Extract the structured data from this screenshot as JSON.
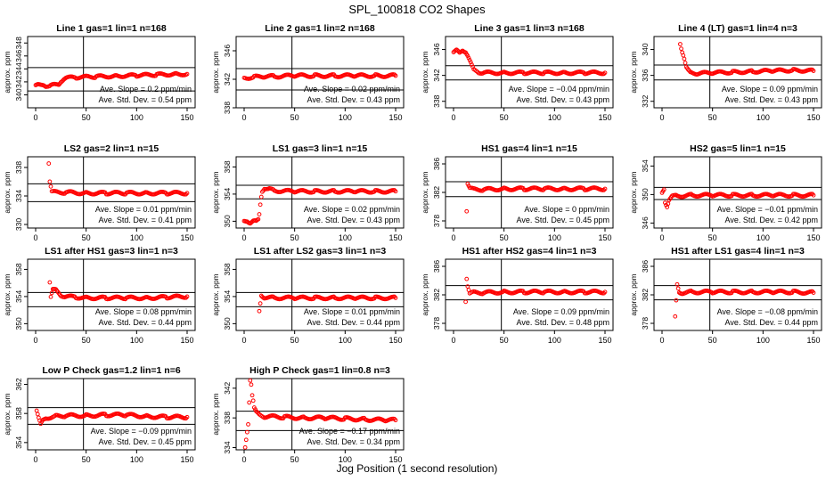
{
  "figure": {
    "title": "SPL_100818  CO2 Shapes",
    "xlabel": "Jog Position (1 second resolution)",
    "ylabel": "approx. ppm",
    "slope_prefix": "Ave. Slope = ",
    "slope_unit": " ppm/min",
    "std_prefix": "Ave. Std. Dev. = ",
    "std_unit": " ppm",
    "point_color": "#ff0000"
  },
  "chart_data": [
    {
      "type": "scatter",
      "title": "Line 1 gas=1 lin=1 n=168",
      "xlim": [
        0,
        150
      ],
      "ylim": [
        338,
        349
      ],
      "yticks": [
        340,
        342,
        344,
        346,
        348
      ],
      "xticks": [
        0,
        50,
        100,
        150
      ],
      "hlines": [
        344.2,
        340.6
      ],
      "vline": 50,
      "slope": "0.2",
      "std": "0.54",
      "points": [
        [
          0,
          341.5
        ],
        [
          2,
          341.5
        ],
        [
          5,
          341.4
        ],
        [
          8,
          341.5
        ],
        [
          10,
          341.4
        ],
        [
          15,
          341.5
        ],
        [
          18,
          341.5
        ],
        [
          20,
          341.5
        ],
        [
          23,
          341.6
        ],
        [
          25,
          342.1
        ],
        [
          28,
          342.5
        ],
        [
          30,
          342.6
        ],
        [
          40,
          342.7
        ],
        [
          60,
          342.8
        ],
        [
          80,
          342.9
        ],
        [
          100,
          343.0
        ],
        [
          120,
          343.1
        ],
        [
          140,
          343.2
        ],
        [
          150,
          343.2
        ]
      ]
    },
    {
      "type": "scatter",
      "title": "Line 2 gas=1 lin=2 n=168",
      "xlim": [
        0,
        150
      ],
      "ylim": [
        338,
        348
      ],
      "yticks": [
        338,
        342,
        346
      ],
      "xticks": [
        0,
        50,
        100,
        150
      ],
      "hlines": [
        343.5,
        340.5
      ],
      "vline": 50,
      "slope": "0.02",
      "std": "0.43",
      "points": [
        [
          0,
          342.2
        ],
        [
          10,
          342.3
        ],
        [
          20,
          342.4
        ],
        [
          30,
          342.4
        ],
        [
          50,
          342.5
        ],
        [
          70,
          342.5
        ],
        [
          90,
          342.5
        ],
        [
          110,
          342.5
        ],
        [
          130,
          342.5
        ],
        [
          150,
          342.5
        ]
      ]
    },
    {
      "type": "scatter",
      "title": "Line 3 gas=1 lin=3 n=168",
      "xlim": [
        0,
        150
      ],
      "ylim": [
        337,
        348
      ],
      "yticks": [
        338,
        342,
        346
      ],
      "xticks": [
        0,
        50,
        100,
        150
      ],
      "hlines": [
        343.5,
        341.3
      ],
      "vline": 50,
      "slope": "−0.04",
      "std": "0.43",
      "points": [
        [
          0,
          345.6
        ],
        [
          3,
          345.8
        ],
        [
          6,
          345.4
        ],
        [
          9,
          345.9
        ],
        [
          12,
          345.7
        ],
        [
          14,
          345.1
        ],
        [
          16,
          344.3
        ],
        [
          18,
          343.5
        ],
        [
          20,
          342.8
        ],
        [
          25,
          342.5
        ],
        [
          30,
          342.4
        ],
        [
          50,
          342.4
        ],
        [
          70,
          342.4
        ],
        [
          90,
          342.4
        ],
        [
          110,
          342.4
        ],
        [
          130,
          342.4
        ],
        [
          150,
          342.4
        ]
      ]
    },
    {
      "type": "scatter",
      "title": "Line 4 (LT) gas=1 lin=4 n=3",
      "xlim": [
        0,
        150
      ],
      "ylim": [
        331,
        342
      ],
      "yticks": [
        332,
        336,
        340
      ],
      "xticks": [
        0,
        50,
        100,
        150
      ],
      "hlines": [
        337.6,
        335.3
      ],
      "vline": 50,
      "slope": "0.09",
      "std": "0.43",
      "points": [
        [
          18,
          341.0
        ],
        [
          19,
          340.3
        ],
        [
          20,
          339.7
        ],
        [
          21,
          339.2
        ],
        [
          22,
          338.6
        ],
        [
          23,
          337.9
        ],
        [
          24,
          337.2
        ],
        [
          26,
          336.7
        ],
        [
          28,
          336.4
        ],
        [
          35,
          336.3
        ],
        [
          50,
          336.4
        ],
        [
          70,
          336.5
        ],
        [
          90,
          336.6
        ],
        [
          110,
          336.7
        ],
        [
          130,
          336.8
        ],
        [
          150,
          336.7
        ]
      ]
    },
    {
      "type": "scatter",
      "title": "LS2 gas=2 lin=1 n=15",
      "xlim": [
        0,
        150
      ],
      "ylim": [
        329.5,
        339.5
      ],
      "yticks": [
        330,
        334,
        338
      ],
      "xticks": [
        0,
        50,
        100,
        150
      ],
      "hlines": [
        335.7,
        333.2
      ],
      "vline": 50,
      "slope": "0.01",
      "std": "0.41",
      "points": [
        [
          13,
          338.7
        ],
        [
          14,
          336.1
        ],
        [
          16,
          334.6
        ],
        [
          20,
          334.5
        ],
        [
          30,
          334.5
        ],
        [
          50,
          334.4
        ],
        [
          70,
          334.4
        ],
        [
          90,
          334.4
        ],
        [
          110,
          334.4
        ],
        [
          130,
          334.4
        ],
        [
          150,
          334.4
        ]
      ]
    },
    {
      "type": "scatter",
      "title": "LS1 gas=3 lin=1 n=15",
      "xlim": [
        0,
        150
      ],
      "ylim": [
        349,
        359.5
      ],
      "yticks": [
        350,
        354,
        358
      ],
      "xticks": [
        0,
        50,
        100,
        150
      ],
      "hlines": [
        355.3,
        353.3
      ],
      "vline": 50,
      "slope": "0.02",
      "std": "0.43",
      "points": [
        [
          0,
          350.0
        ],
        [
          3,
          350.1
        ],
        [
          6,
          349.8
        ],
        [
          9,
          350.0
        ],
        [
          12,
          349.9
        ],
        [
          14,
          350.2
        ],
        [
          15,
          351.0
        ],
        [
          16,
          352.5
        ],
        [
          17,
          353.7
        ],
        [
          18,
          354.5
        ],
        [
          20,
          354.9
        ],
        [
          25,
          354.7
        ],
        [
          30,
          354.5
        ],
        [
          50,
          354.4
        ],
        [
          70,
          354.4
        ],
        [
          90,
          354.4
        ],
        [
          110,
          354.4
        ],
        [
          130,
          354.4
        ],
        [
          150,
          354.4
        ]
      ]
    },
    {
      "type": "scatter",
      "title": "HS1 gas=4 lin=1 n=15",
      "xlim": [
        0,
        150
      ],
      "ylim": [
        377,
        387
      ],
      "yticks": [
        378,
        382,
        386
      ],
      "xticks": [
        0,
        50,
        100,
        150
      ],
      "hlines": [
        383.5,
        381.4
      ],
      "vline": 50,
      "slope": "0",
      "std": "0.45",
      "points": [
        [
          13,
          379.5
        ],
        [
          14,
          383.3
        ],
        [
          16,
          382.6
        ],
        [
          20,
          382.4
        ],
        [
          30,
          382.4
        ],
        [
          50,
          382.5
        ],
        [
          70,
          382.5
        ],
        [
          90,
          382.5
        ],
        [
          110,
          382.5
        ],
        [
          130,
          382.5
        ],
        [
          150,
          382.5
        ]
      ]
    },
    {
      "type": "scatter",
      "title": "HS2 gas=5 lin=1 n=15",
      "xlim": [
        0,
        150
      ],
      "ylim": [
        345.3,
        355.3
      ],
      "yticks": [
        346,
        350,
        354
      ],
      "xticks": [
        0,
        50,
        100,
        150
      ],
      "hlines": [
        351.0,
        349.3
      ],
      "vline": 50,
      "slope": "−0.01",
      "std": "0.42",
      "points": [
        [
          0,
          350.2
        ],
        [
          2,
          350.8
        ],
        [
          3,
          349.0
        ],
        [
          5,
          348.4
        ],
        [
          7,
          349.3
        ],
        [
          10,
          349.7
        ],
        [
          15,
          349.8
        ],
        [
          30,
          349.9
        ],
        [
          50,
          349.9
        ],
        [
          70,
          349.9
        ],
        [
          90,
          349.9
        ],
        [
          110,
          349.9
        ],
        [
          130,
          349.9
        ],
        [
          150,
          349.9
        ]
      ]
    },
    {
      "type": "scatter",
      "title": "LS1 after HS1 gas=3 lin=1 n=3",
      "xlim": [
        0,
        150
      ],
      "ylim": [
        349,
        359.5
      ],
      "yticks": [
        350,
        354,
        358
      ],
      "xticks": [
        0,
        50,
        100,
        150
      ],
      "hlines": [
        354.6,
        352.5
      ],
      "vline": 50,
      "slope": "0.08",
      "std": "0.44",
      "points": [
        [
          14,
          356.2
        ],
        [
          15,
          354.0
        ],
        [
          17,
          355.0
        ],
        [
          20,
          354.9
        ],
        [
          22,
          354.6
        ],
        [
          25,
          354.2
        ],
        [
          30,
          354.0
        ],
        [
          40,
          353.9
        ],
        [
          50,
          353.8
        ],
        [
          70,
          353.8
        ],
        [
          90,
          353.8
        ],
        [
          110,
          353.8
        ],
        [
          130,
          353.9
        ],
        [
          150,
          354.0
        ]
      ]
    },
    {
      "type": "scatter",
      "title": "LS1 after LS2 gas=3 lin=1 n=3",
      "xlim": [
        0,
        150
      ],
      "ylim": [
        349,
        359.5
      ],
      "yticks": [
        350,
        354,
        358
      ],
      "xticks": [
        0,
        50,
        100,
        150
      ],
      "hlines": [
        354.6,
        352.5
      ],
      "vline": 50,
      "slope": "0.01",
      "std": "0.44",
      "points": [
        [
          15,
          351.8
        ],
        [
          17,
          354.2
        ],
        [
          20,
          353.9
        ],
        [
          30,
          353.8
        ],
        [
          50,
          353.8
        ],
        [
          70,
          353.8
        ],
        [
          90,
          353.8
        ],
        [
          110,
          353.8
        ],
        [
          130,
          353.8
        ],
        [
          150,
          353.8
        ]
      ]
    },
    {
      "type": "scatter",
      "title": "HS1 after HS2 gas=4 lin=1 n=3",
      "xlim": [
        0,
        150
      ],
      "ylim": [
        377,
        387
      ],
      "yticks": [
        378,
        382,
        386
      ],
      "xticks": [
        0,
        50,
        100,
        150
      ],
      "hlines": [
        383.3,
        381.3
      ],
      "vline": 50,
      "slope": "0.09",
      "std": "0.48",
      "points": [
        [
          12,
          381.2
        ],
        [
          13,
          384.4
        ],
        [
          14,
          383.3
        ],
        [
          16,
          382.2
        ],
        [
          20,
          382.3
        ],
        [
          30,
          382.3
        ],
        [
          50,
          382.4
        ],
        [
          70,
          382.4
        ],
        [
          90,
          382.4
        ],
        [
          110,
          382.4
        ],
        [
          130,
          382.4
        ],
        [
          150,
          382.4
        ]
      ]
    },
    {
      "type": "scatter",
      "title": "HS1 after LS1 gas=4 lin=1 n=3",
      "xlim": [
        0,
        150
      ],
      "ylim": [
        377,
        387
      ],
      "yticks": [
        378,
        382,
        386
      ],
      "xticks": [
        0,
        50,
        100,
        150
      ],
      "hlines": [
        383.3,
        381.3
      ],
      "vline": 50,
      "slope": "−0.08",
      "std": "0.44",
      "points": [
        [
          13,
          378.8
        ],
        [
          15,
          383.4
        ],
        [
          17,
          382.4
        ],
        [
          20,
          382.3
        ],
        [
          30,
          382.4
        ],
        [
          50,
          382.4
        ],
        [
          70,
          382.4
        ],
        [
          90,
          382.4
        ],
        [
          110,
          382.4
        ],
        [
          130,
          382.4
        ],
        [
          150,
          382.3
        ]
      ]
    },
    {
      "type": "scatter",
      "title": "Low P Check gas=1.2 lin=1 n=6",
      "xlim": [
        0,
        150
      ],
      "ylim": [
        353,
        362.8
      ],
      "yticks": [
        354,
        358,
        362
      ],
      "xticks": [
        0,
        50,
        100,
        150
      ],
      "hlines": [
        358.8,
        356.5
      ],
      "vline": 50,
      "slope": "−0.09",
      "std": "0.45",
      "points": [
        [
          1,
          358.4
        ],
        [
          3,
          357.3
        ],
        [
          5,
          356.4
        ],
        [
          7,
          357.0
        ],
        [
          10,
          357.4
        ],
        [
          20,
          357.6
        ],
        [
          30,
          357.7
        ],
        [
          50,
          357.7
        ],
        [
          70,
          357.8
        ],
        [
          90,
          357.8
        ],
        [
          110,
          357.6
        ],
        [
          130,
          357.5
        ],
        [
          150,
          357.5
        ]
      ]
    },
    {
      "type": "scatter",
      "title": "High P Check gas=1 lin=0.8 n=3",
      "xlim": [
        0,
        150
      ],
      "ylim": [
        333.7,
        343.3
      ],
      "yticks": [
        334,
        338,
        342
      ],
      "xticks": [
        0,
        50,
        100,
        150
      ],
      "hlines": [
        338.9,
        336.3
      ],
      "vline": 50,
      "slope": "−0.17",
      "std": "0.34",
      "points": [
        [
          1,
          334.0
        ],
        [
          4,
          337.3
        ],
        [
          6,
          343.2
        ],
        [
          7,
          342.6
        ],
        [
          8,
          341.1
        ],
        [
          9,
          340.3
        ],
        [
          10,
          339.3
        ],
        [
          12,
          338.7
        ],
        [
          15,
          338.4
        ],
        [
          20,
          338.2
        ],
        [
          40,
          338.1
        ],
        [
          60,
          338.0
        ],
        [
          80,
          338.0
        ],
        [
          100,
          337.9
        ],
        [
          120,
          337.8
        ],
        [
          140,
          337.7
        ],
        [
          150,
          337.7
        ]
      ]
    }
  ]
}
